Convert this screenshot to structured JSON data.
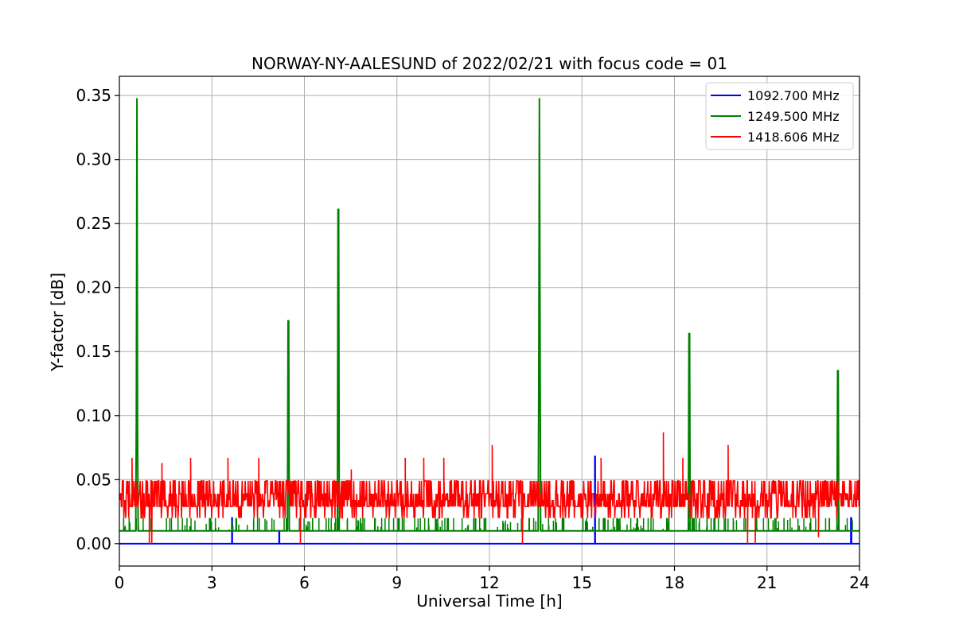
{
  "chart_data": {
    "type": "line",
    "title": "NORWAY-NY-AALESUND of 2022/02/21 with focus code = 01",
    "xlabel": "Universal Time [h]",
    "ylabel": "Y-factor [dB]",
    "xlim": [
      0,
      24
    ],
    "ylim": [
      -0.0175,
      0.365
    ],
    "xticks": [
      0,
      3,
      6,
      9,
      12,
      15,
      18,
      21,
      24
    ],
    "xtick_labels": [
      "0",
      "3",
      "6",
      "9",
      "12",
      "15",
      "18",
      "21",
      "24"
    ],
    "yticks": [
      0.0,
      0.05,
      0.1,
      0.15,
      0.2,
      0.25,
      0.3,
      0.35
    ],
    "ytick_labels": [
      "0.00",
      "0.05",
      "0.10",
      "0.15",
      "0.20",
      "0.25",
      "0.30",
      "0.35"
    ],
    "grid": true,
    "legend_position": "top-right",
    "series": [
      {
        "name": "1092.700 MHz",
        "color": "#0000ff",
        "baseline": 0.0,
        "x": [
          0,
          3.65,
          3.65,
          3.66,
          3.66,
          5.18,
          5.18,
          5.19,
          5.19,
          15.42,
          15.42,
          15.43,
          15.43,
          23.72,
          23.72,
          23.74,
          23.74,
          24
        ],
        "y": [
          0,
          0,
          0.02,
          0.02,
          0,
          0,
          0.01,
          0.01,
          0,
          0,
          0.068,
          0.068,
          0,
          0,
          0.02,
          0.02,
          0,
          0
        ]
      },
      {
        "name": "1249.500 MHz",
        "color": "#008000",
        "baseline": 0.01,
        "x": [
          0,
          0.53,
          0.55,
          0.57,
          0.59,
          0.61,
          5.45,
          5.47,
          5.49,
          5.51,
          7.07,
          7.09,
          7.11,
          7.13,
          13.58,
          13.6,
          13.62,
          13.64,
          13.66,
          18.45,
          18.47,
          18.49,
          18.51,
          23.27,
          23.29,
          23.31,
          23.33,
          24
        ],
        "y": [
          0.01,
          0.01,
          0.097,
          0.348,
          0.087,
          0.01,
          0.01,
          0.174,
          0.174,
          0.01,
          0.01,
          0.261,
          0.261,
          0.01,
          0.01,
          0.126,
          0.348,
          0.174,
          0.01,
          0.01,
          0.164,
          0.164,
          0.01,
          0.01,
          0.135,
          0.135,
          0.01,
          0.01
        ]
      },
      {
        "name": "1418.606 MHz",
        "color": "#ff0000",
        "noise_range": [
          0.02,
          0.049
        ],
        "x": [
          0.41,
          0.97,
          1.05,
          1.38,
          2.31,
          3.52,
          4.52,
          5.87,
          7.52,
          9.27,
          9.87,
          10.52,
          12.09,
          13.07,
          15.62,
          17.64,
          18.27,
          19.74,
          20.37,
          20.62,
          22.67
        ],
        "y": [
          0.067,
          0.0,
          0.0,
          0.063,
          0.067,
          0.067,
          0.067,
          0.0,
          0.058,
          0.067,
          0.067,
          0.067,
          0.077,
          0.0,
          0.067,
          0.087,
          0.067,
          0.077,
          0.0,
          0.0,
          0.005
        ]
      }
    ]
  }
}
